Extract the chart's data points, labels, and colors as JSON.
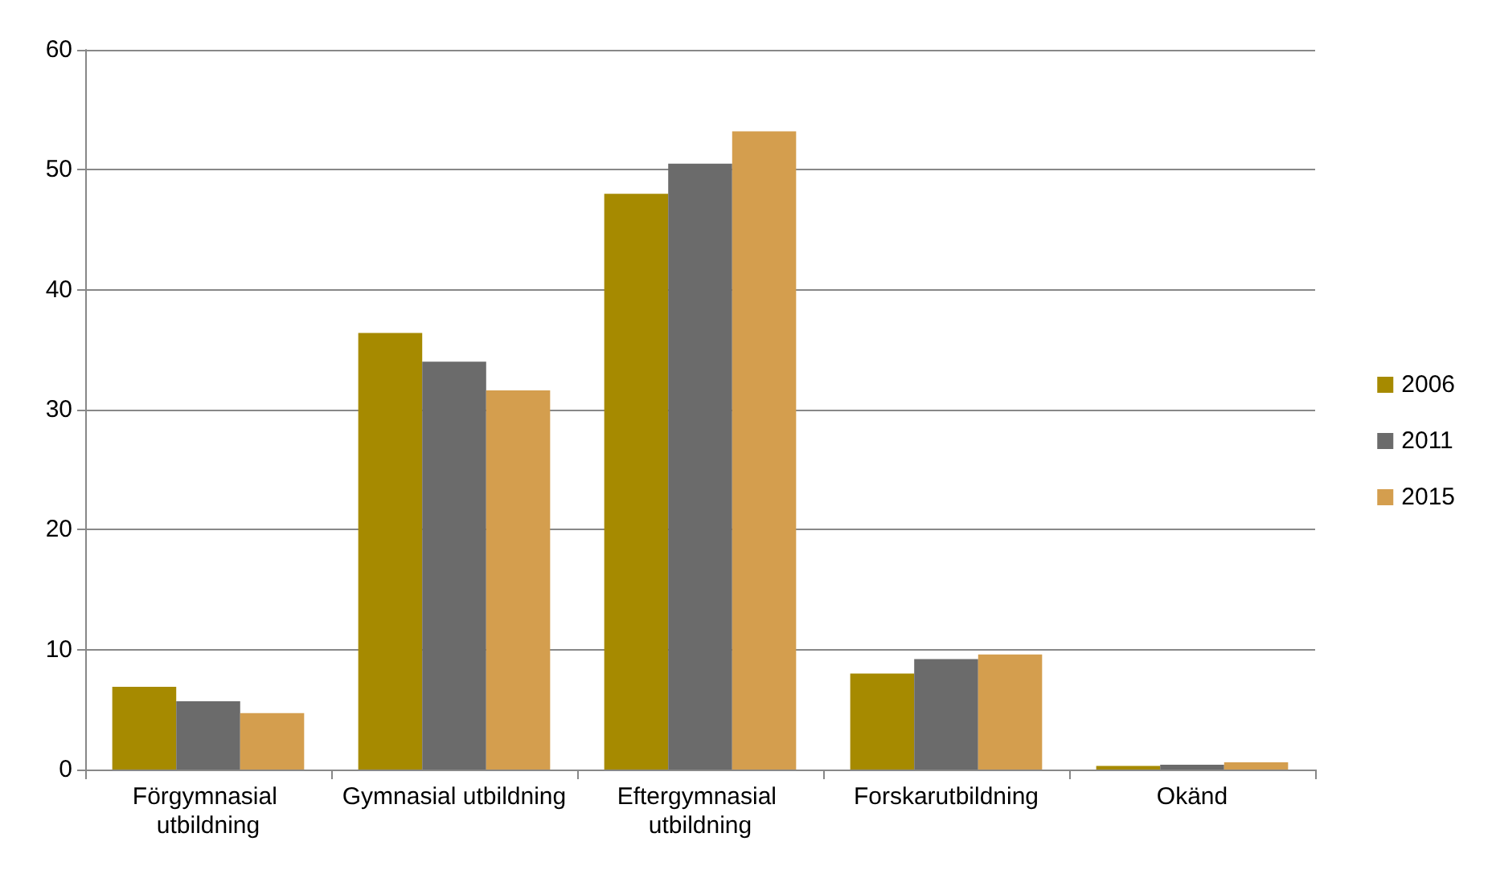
{
  "chart_data": {
    "type": "bar",
    "categories": [
      "Förgymnasial utbildning",
      "Gymnasial utbildning",
      "Eftergymnasial utbildning",
      "Forskarutbildning",
      "Okänd"
    ],
    "series": [
      {
        "name": "2006",
        "color": "#a68a00",
        "values": [
          6.9,
          36.4,
          48.0,
          8.0,
          0.3
        ]
      },
      {
        "name": "2011",
        "color": "#6b6b6b",
        "values": [
          5.7,
          34.0,
          50.5,
          9.2,
          0.4
        ]
      },
      {
        "name": "2015",
        "color": "#d49e4e",
        "values": [
          4.7,
          31.6,
          53.2,
          9.6,
          0.6
        ]
      }
    ],
    "ylim": [
      0,
      60
    ],
    "yticks": [
      0,
      10,
      20,
      30,
      40,
      50,
      60
    ],
    "grid": "y",
    "legend": "right"
  }
}
